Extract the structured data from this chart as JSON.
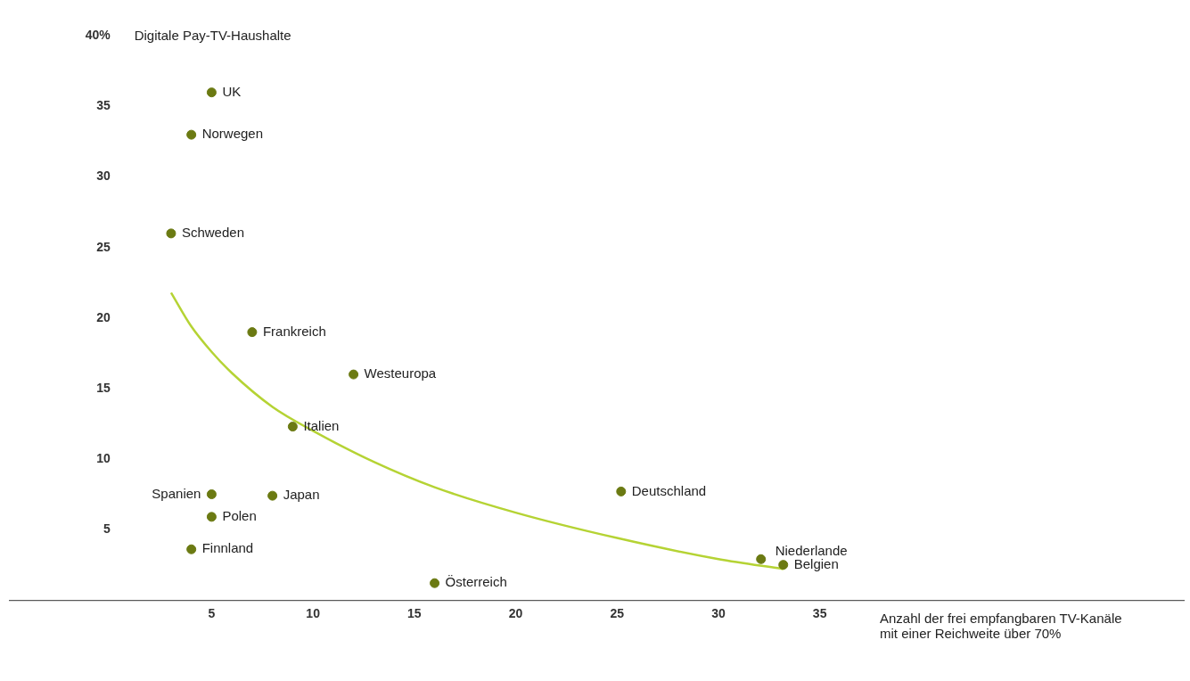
{
  "chart_data": {
    "type": "scatter",
    "ylabel": "Digitale Pay-TV-Haushalte",
    "xlabel": "Anzahl der frei empfangbaren TV-Kanäle\nmit einer Reichweite über 70%",
    "xlim": [
      -5,
      53
    ],
    "xticks": [
      5,
      10,
      15,
      20,
      25,
      30,
      35
    ],
    "ylim": [
      0,
      40
    ],
    "yticks": [
      5,
      10,
      15,
      20,
      25,
      30,
      35,
      {
        "value": 40,
        "label": "40%"
      }
    ],
    "grid": false,
    "legend": false,
    "marker": "circle",
    "series": [
      {
        "color": "#6b7a12",
        "x": [
          5,
          4,
          3,
          7,
          12,
          9,
          5,
          8,
          5,
          4,
          16,
          25.2,
          32.1,
          33.2
        ],
        "values": [
          36,
          33,
          26,
          19,
          16,
          12.3,
          7.5,
          7.4,
          5.9,
          3.6,
          1.2,
          7.7,
          2.9,
          2.5
        ]
      },
      {
        "type": "line",
        "marker": "none",
        "color": "#b5d334",
        "line_style": "solid",
        "x": [
          3,
          4,
          5,
          6,
          8,
          10,
          13,
          16,
          20,
          25,
          30,
          33.2
        ],
        "values": [
          21.8,
          19.4,
          17.6,
          16.1,
          13.7,
          12.0,
          9.8,
          8.0,
          6.2,
          4.4,
          2.9,
          2.2
        ]
      }
    ],
    "annotations": [
      {
        "text": "UK",
        "x": 5,
        "y": 36
      },
      {
        "text": "Norwegen",
        "x": 4,
        "y": 33
      },
      {
        "text": "Schweden",
        "x": 3,
        "y": 26
      },
      {
        "text": "Frankreich",
        "x": 7,
        "y": 19
      },
      {
        "text": "Westeuropa",
        "x": 12,
        "y": 16
      },
      {
        "text": "Italien",
        "x": 9,
        "y": 12.3
      },
      {
        "text": "Spanien",
        "x": 5,
        "y": 7.5
      },
      {
        "text": "Japan",
        "x": 8,
        "y": 7.4
      },
      {
        "text": "Polen",
        "x": 5,
        "y": 5.9
      },
      {
        "text": "Finnland",
        "x": 4,
        "y": 3.6
      },
      {
        "text": "Österreich",
        "x": 16,
        "y": 1.2
      },
      {
        "text": "Deutschland",
        "x": 25.2,
        "y": 7.7
      },
      {
        "text": "Niederlande",
        "x": 32.1,
        "y": 2.9
      },
      {
        "text": "Belgien",
        "x": 33.2,
        "y": 2.5
      }
    ]
  }
}
